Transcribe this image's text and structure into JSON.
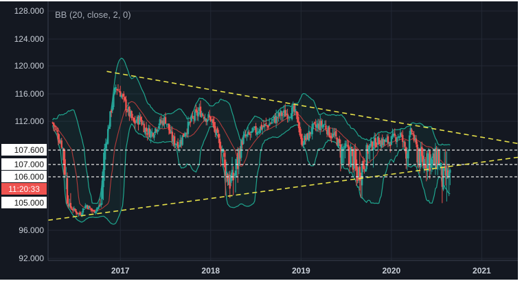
{
  "chart_data": {
    "type": "candlestick",
    "indicator": "BB (20, close, 2, 0)",
    "y_ticks": [
      "128.000",
      "124.000",
      "120.000",
      "116.000",
      "112.000",
      "96.000",
      "92.000"
    ],
    "x_ticks": [
      "2017",
      "2018",
      "2019",
      "2020",
      "2021"
    ],
    "highlight_labels": [
      {
        "text": "107.600",
        "style": "white"
      },
      {
        "text": "107.000",
        "style": "white"
      },
      {
        "text": "106.000",
        "style": "white"
      },
      {
        "text": "11:20:33",
        "style": "red"
      },
      {
        "text": "105.000",
        "style": "white"
      }
    ],
    "horizontal_levels": [
      "107.600",
      "107.000",
      "106.000"
    ],
    "trendline_upper": {
      "from": [
        2016.85,
        119.2
      ],
      "to": [
        2021.4,
        108.6
      ]
    },
    "trendline_lower": {
      "from": [
        2016.2,
        99.3
      ],
      "to": [
        2021.4,
        107.3
      ]
    },
    "colors": {
      "background": "#141821",
      "grid": "#232935",
      "up": "#26a69a",
      "down": "#ef5350",
      "bands": "#1fa68f",
      "basis": "#b33b3b",
      "trendline": "#e8e24a",
      "level": "#e8e8e8",
      "time_label": "#ef5350"
    },
    "close_series": [
      [
        2016.25,
        111.8
      ],
      [
        2016.35,
        108.5
      ],
      [
        2016.45,
        103.4
      ],
      [
        2016.55,
        101.2
      ],
      [
        2016.62,
        104.4
      ],
      [
        2016.7,
        102.1
      ],
      [
        2016.78,
        104.3
      ],
      [
        2016.85,
        109.5
      ],
      [
        2016.9,
        113.8
      ],
      [
        2016.95,
        117.0
      ],
      [
        2017.0,
        116.2
      ],
      [
        2017.08,
        113.6
      ],
      [
        2017.15,
        111.7
      ],
      [
        2017.22,
        112.4
      ],
      [
        2017.28,
        110.6
      ],
      [
        2017.35,
        110.2
      ],
      [
        2017.42,
        111.5
      ],
      [
        2017.5,
        112.3
      ],
      [
        2017.58,
        109.0
      ],
      [
        2017.65,
        108.6
      ],
      [
        2017.72,
        110.5
      ],
      [
        2017.8,
        112.4
      ],
      [
        2017.88,
        113.5
      ],
      [
        2017.95,
        112.6
      ],
      [
        2018.0,
        112.4
      ],
      [
        2018.06,
        110.0
      ],
      [
        2018.12,
        107.9
      ],
      [
        2018.18,
        106.2
      ],
      [
        2018.24,
        105.8
      ],
      [
        2018.3,
        107.0
      ],
      [
        2018.36,
        109.4
      ],
      [
        2018.42,
        109.8
      ],
      [
        2018.5,
        110.6
      ],
      [
        2018.56,
        111.1
      ],
      [
        2018.62,
        111.3
      ],
      [
        2018.7,
        112.2
      ],
      [
        2018.78,
        113.0
      ],
      [
        2018.86,
        113.2
      ],
      [
        2018.92,
        113.5
      ],
      [
        2018.97,
        112.0
      ],
      [
        2019.0,
        108.8
      ],
      [
        2019.06,
        109.4
      ],
      [
        2019.12,
        110.8
      ],
      [
        2019.2,
        111.4
      ],
      [
        2019.26,
        111.5
      ],
      [
        2019.32,
        110.0
      ],
      [
        2019.38,
        109.6
      ],
      [
        2019.44,
        107.8
      ],
      [
        2019.5,
        107.9
      ],
      [
        2019.56,
        107.5
      ],
      [
        2019.62,
        106.3
      ],
      [
        2019.68,
        106.8
      ],
      [
        2019.74,
        107.9
      ],
      [
        2019.8,
        108.6
      ],
      [
        2019.86,
        109.0
      ],
      [
        2019.92,
        108.9
      ],
      [
        2019.98,
        108.9
      ],
      [
        2020.04,
        109.6
      ],
      [
        2020.1,
        110.0
      ],
      [
        2020.14,
        108.3
      ],
      [
        2020.18,
        107.6
      ],
      [
        2020.22,
        110.8
      ],
      [
        2020.28,
        107.8
      ],
      [
        2020.34,
        107.0
      ],
      [
        2020.4,
        107.4
      ],
      [
        2020.46,
        106.9
      ],
      [
        2020.52,
        107.5
      ],
      [
        2020.56,
        106.0
      ],
      [
        2020.62,
        106.2
      ],
      [
        2020.66,
        105.9
      ]
    ]
  }
}
